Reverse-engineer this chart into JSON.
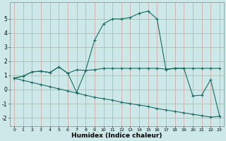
{
  "xlabel": "Humidex (Indice chaleur)",
  "bg_color": "#cce8e8",
  "grid_color": "#b0c8c8",
  "line_color": "#1a6b60",
  "xlim": [
    -0.5,
    23.5
  ],
  "ylim": [
    -2.6,
    6.2
  ],
  "xticks": [
    0,
    1,
    2,
    3,
    4,
    5,
    6,
    7,
    8,
    9,
    10,
    11,
    12,
    13,
    14,
    15,
    16,
    17,
    18,
    19,
    20,
    21,
    22,
    23
  ],
  "yticks": [
    -2,
    -1,
    0,
    1,
    2,
    3,
    4,
    5
  ],
  "line1_x": [
    0,
    1,
    2,
    3,
    4,
    5,
    6,
    7,
    8,
    9,
    10,
    11,
    12,
    13,
    14,
    15,
    16,
    17,
    18,
    19,
    20,
    21,
    22,
    23
  ],
  "line1_y": [
    0.8,
    0.95,
    1.25,
    1.3,
    1.2,
    1.6,
    1.15,
    1.4,
    1.35,
    1.4,
    1.5,
    1.5,
    1.5,
    1.5,
    1.5,
    1.5,
    1.5,
    1.45,
    1.5,
    1.5,
    1.5,
    1.5,
    1.5,
    1.5
  ],
  "line2_x": [
    0,
    1,
    2,
    3,
    4,
    5,
    6,
    7,
    8,
    9,
    10,
    11,
    12,
    13,
    14,
    15,
    16,
    17,
    18,
    19,
    20,
    21,
    22,
    23
  ],
  "line2_y": [
    0.8,
    0.95,
    1.25,
    1.3,
    1.2,
    1.6,
    1.15,
    -0.2,
    1.35,
    3.5,
    4.65,
    5.0,
    5.0,
    5.1,
    5.4,
    5.55,
    5.0,
    1.4,
    1.5,
    1.5,
    -0.45,
    -0.4,
    0.7,
    -1.9
  ],
  "line3_x": [
    0,
    1,
    2,
    3,
    4,
    5,
    6,
    7,
    8,
    9,
    10,
    11,
    12,
    13,
    14,
    15,
    16,
    17,
    18,
    19,
    20,
    21,
    22,
    23
  ],
  "line3_y": [
    0.8,
    0.65,
    0.5,
    0.35,
    0.2,
    0.05,
    -0.1,
    -0.25,
    -0.4,
    -0.55,
    -0.65,
    -0.75,
    -0.9,
    -1.0,
    -1.1,
    -1.2,
    -1.35,
    -1.45,
    -1.55,
    -1.65,
    -1.75,
    -1.85,
    -1.95,
    -1.9
  ]
}
